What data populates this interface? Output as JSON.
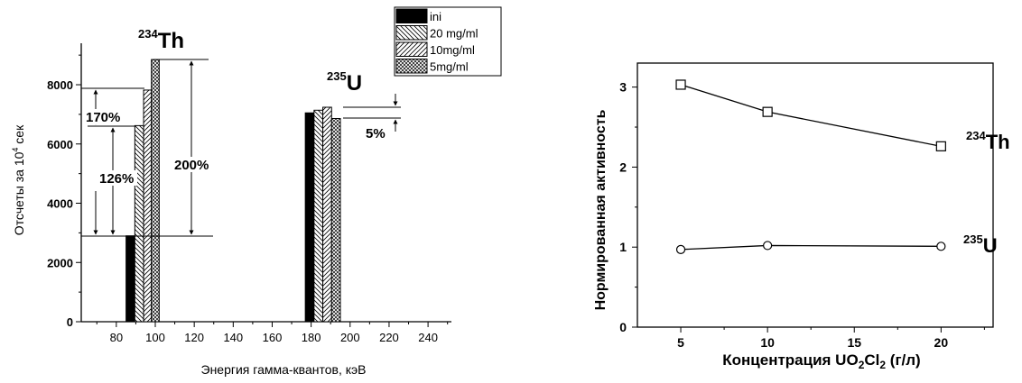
{
  "chart_data": [
    {
      "type": "bar",
      "xlabel": "Энергия гамма-квантов, кэВ",
      "ylabel": "Отсчеты за 10⁴ сек",
      "ylabel_main": "Отсчеты за 10",
      "ylabel_sup": "4",
      "ylabel_tail": " сек",
      "xlim": [
        62,
        252
      ],
      "ylim": [
        0,
        9400
      ],
      "xticks": [
        80,
        100,
        120,
        140,
        160,
        180,
        200,
        220,
        240
      ],
      "xticks_minor": [
        70,
        90,
        110,
        130,
        150,
        170,
        190,
        210,
        230,
        250
      ],
      "yticks": [
        0,
        2000,
        4000,
        6000,
        8000
      ],
      "yticks_minor": [
        1000,
        3000,
        5000,
        7000,
        9000
      ],
      "legend_position": "top-right",
      "series": [
        {
          "name": "ini",
          "pattern": "solid"
        },
        {
          "name": " 20 mg/ml",
          "pattern": "diag-back"
        },
        {
          "name": "10mg/ml",
          "pattern": "diag-fwd"
        },
        {
          "name": "5mg/ml",
          "pattern": "cross"
        }
      ],
      "bars": [
        {
          "series": 0,
          "x0": 85,
          "x1": 89.5,
          "value": 2900
        },
        {
          "series": 1,
          "x0": 89.5,
          "x1": 94,
          "value": 6620
        },
        {
          "series": 2,
          "x0": 94,
          "x1": 98,
          "value": 7820
        },
        {
          "series": 3,
          "x0": 98,
          "x1": 102,
          "value": 8850
        },
        {
          "series": 0,
          "x0": 177,
          "x1": 181.5,
          "value": 7050
        },
        {
          "series": 1,
          "x0": 181.5,
          "x1": 186,
          "value": 7140
        },
        {
          "series": 2,
          "x0": 186,
          "x1": 190.5,
          "value": 7240
        },
        {
          "series": 3,
          "x0": 190.5,
          "x1": 195,
          "value": 6860
        }
      ],
      "peak_labels": [
        {
          "main": "Th",
          "sup": "234"
        },
        {
          "main": "U",
          "sup": "235"
        }
      ],
      "annotations": [
        "170%",
        "126%",
        "200%",
        "5%"
      ]
    },
    {
      "type": "line",
      "xlabel": "Концентрация UO₂Cl₂ (г/л)",
      "xlabel_parts": [
        "Концентрация UO",
        "2",
        "Cl",
        "2",
        " (г/л)"
      ],
      "ylabel": "Нормированная активность",
      "xlim": [
        2.5,
        23
      ],
      "ylim": [
        0,
        3.3
      ],
      "xticks": [
        5,
        10,
        15,
        20
      ],
      "xticks_minor": [
        7.5,
        12.5,
        17.5,
        22.5
      ],
      "yticks": [
        0,
        1,
        2,
        3
      ],
      "yticks_minor": [
        0.5,
        1.5,
        2.5
      ],
      "x": [
        5,
        10,
        20
      ],
      "series": [
        {
          "label_main": "Th",
          "label_sup": "234",
          "marker": "square",
          "values": [
            3.03,
            2.69,
            2.26
          ]
        },
        {
          "label_main": "U",
          "label_sup": "235",
          "marker": "circle",
          "values": [
            0.97,
            1.02,
            1.01
          ]
        }
      ]
    }
  ]
}
